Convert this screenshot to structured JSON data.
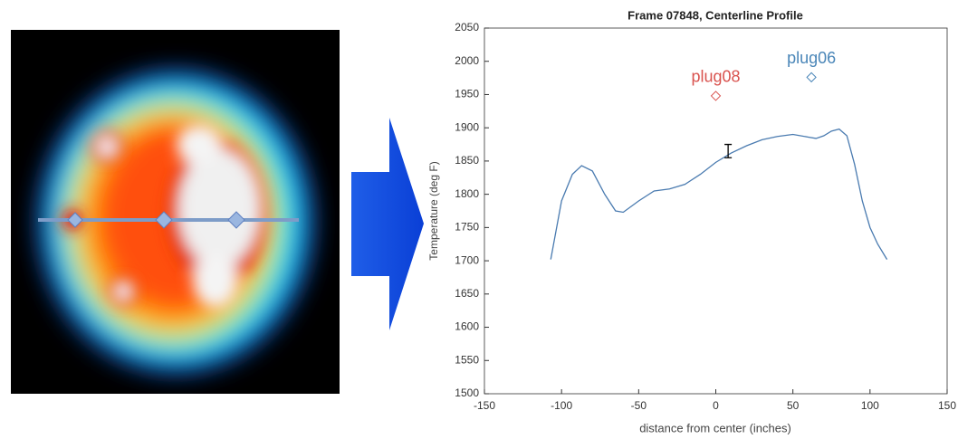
{
  "chart_data": {
    "type": "line",
    "title": "Frame 07848, Centerline Profile",
    "xlabel": "distance from center (inches)",
    "ylabel": "Temperature (deg F)",
    "xlim": [
      -150,
      150
    ],
    "ylim": [
      1500,
      2050
    ],
    "xticks": [
      -150,
      -100,
      -50,
      0,
      50,
      100,
      150
    ],
    "yticks": [
      1500,
      1550,
      1600,
      1650,
      1700,
      1750,
      1800,
      1850,
      1900,
      1950,
      2000,
      2050
    ],
    "series": [
      {
        "color": "#4a7bb0",
        "x": [
          -107,
          -100,
          -93,
          -87,
          -80,
          -72,
          -65,
          -60,
          -50,
          -40,
          -30,
          -20,
          -10,
          0,
          10,
          20,
          30,
          40,
          50,
          60,
          65,
          70,
          75,
          80,
          85,
          90,
          95,
          100,
          105,
          111
        ],
        "values": [
          1702,
          1790,
          1830,
          1843,
          1835,
          1800,
          1775,
          1773,
          1790,
          1805,
          1808,
          1815,
          1830,
          1848,
          1862,
          1873,
          1882,
          1887,
          1890,
          1886,
          1884,
          1888,
          1895,
          1898,
          1888,
          1845,
          1790,
          1750,
          1725,
          1702
        ]
      }
    ],
    "points": [
      {
        "name": "plug08",
        "x": 0,
        "y": 1948,
        "color": "#d9534f"
      },
      {
        "name": "plug06",
        "x": 62,
        "y": 1976,
        "color": "#4a86b8"
      }
    ],
    "errorbar": {
      "x": 8,
      "value": 1865,
      "error": 10,
      "color": "#000000"
    }
  }
}
